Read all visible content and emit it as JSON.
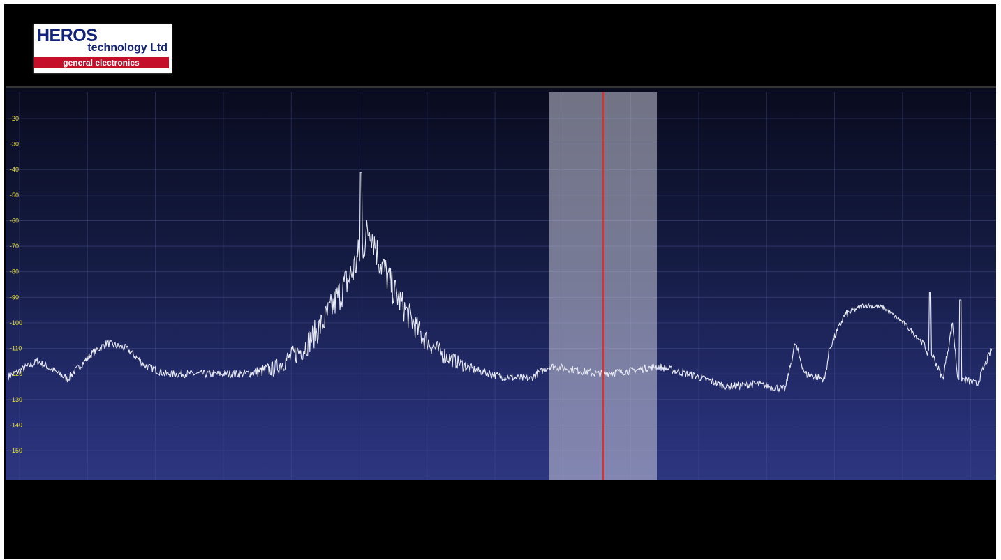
{
  "logo": {
    "line1": "HEROS",
    "line2": "technology Ltd",
    "line3": "general electronics"
  },
  "spectrum": {
    "trace_color": "#e8eaf4",
    "marker_color": "#ff2020",
    "band_color": "#c8c8d8",
    "y_ticks": [
      "-20",
      "-30",
      "-40",
      "-50",
      "-60",
      "-70",
      "-80",
      "-90",
      "-100",
      "-110",
      "-120",
      "-130",
      "-140",
      "-150"
    ]
  },
  "chart_data": {
    "type": "line",
    "ylim": [
      -160,
      -10
    ],
    "xlim": [
      0,
      1
    ],
    "grid": true,
    "selection_band": [
      0.55,
      0.66
    ],
    "marker_x": 0.605,
    "series": [
      {
        "x": [
          0,
          0.03,
          0.06,
          0.085,
          0.1,
          0.12,
          0.14,
          0.16,
          0.2,
          0.24,
          0.27,
          0.3,
          0.32,
          0.335,
          0.35,
          0.36,
          0.368,
          0.376,
          0.39,
          0.405,
          0.42,
          0.44,
          0.47,
          0.5,
          0.53,
          0.55,
          0.57,
          0.6,
          0.63,
          0.66,
          0.7,
          0.73,
          0.76,
          0.79,
          0.8,
          0.81,
          0.83,
          0.835,
          0.85,
          0.87,
          0.89,
          0.91,
          0.93,
          0.935,
          0.94,
          0.95,
          0.96,
          0.965,
          0.97,
          0.985,
          1
        ],
        "values": [
          -121,
          -115,
          -122,
          -112,
          -108,
          -110,
          -117,
          -120,
          -120,
          -120,
          -118,
          -110,
          -100,
          -90,
          -80,
          -70,
          -62,
          -74,
          -86,
          -96,
          -105,
          -112,
          -118,
          -121,
          -122,
          -117,
          -118,
          -120,
          -119,
          -117,
          -121,
          -125,
          -124,
          -126,
          -108,
          -120,
          -122,
          -110,
          -97,
          -93,
          -94,
          -100,
          -108,
          -112,
          -113,
          -122,
          -100,
          -121,
          -122,
          -124,
          -110
        ]
      }
    ]
  }
}
